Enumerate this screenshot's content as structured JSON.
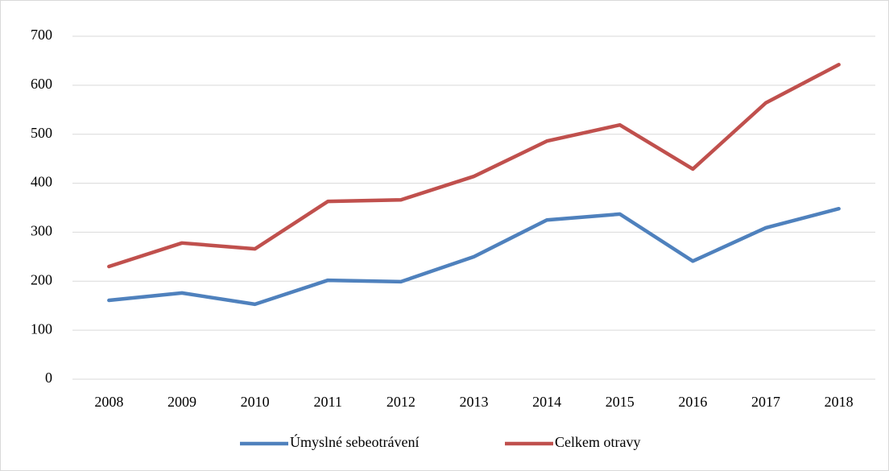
{
  "chart_data": {
    "type": "line",
    "categories": [
      "2008",
      "2009",
      "2010",
      "2011",
      "2012",
      "2013",
      "2014",
      "2015",
      "2016",
      "2017",
      "2018"
    ],
    "series": [
      {
        "name": "Úmyslné sebeotrávení",
        "color": "#4f81bd",
        "values": [
          161,
          176,
          153,
          202,
          199,
          250,
          325,
          337,
          241,
          309,
          348
        ]
      },
      {
        "name": "Celkem otravy",
        "color": "#c0504d",
        "values": [
          230,
          278,
          266,
          363,
          366,
          414,
          486,
          519,
          429,
          564,
          642
        ]
      }
    ],
    "ylim": [
      0,
      700
    ],
    "yticks": [
      0,
      100,
      200,
      300,
      400,
      500,
      600,
      700
    ],
    "grid": true,
    "legend": "bottom"
  }
}
